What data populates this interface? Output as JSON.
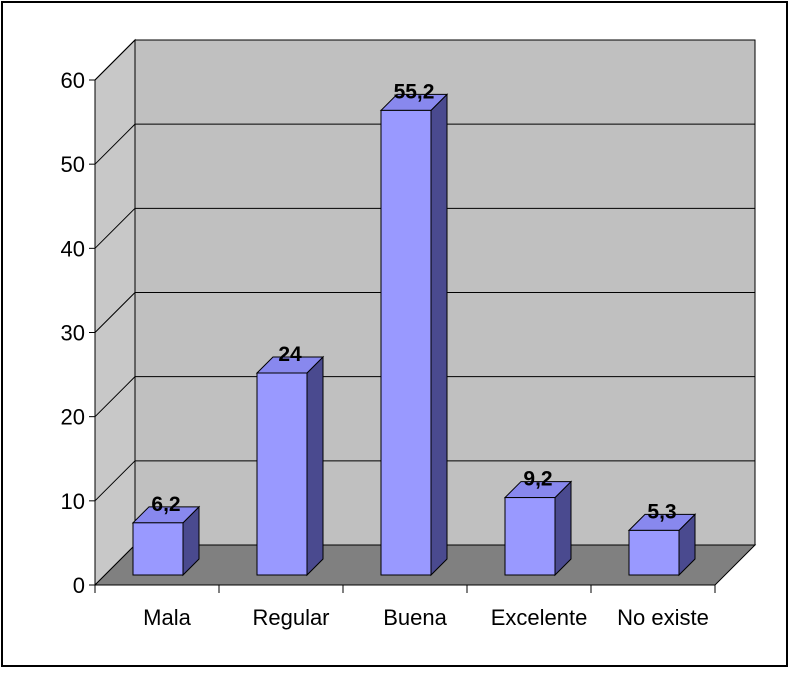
{
  "chart_data": {
    "type": "bar",
    "categories": [
      "Mala",
      "Regular",
      "Buena",
      "Excelente",
      "No existe"
    ],
    "values": [
      6.2,
      24,
      55.2,
      9.2,
      5.3
    ],
    "value_labels": [
      "6,2",
      "24",
      "55,2",
      "9,2",
      "5,3"
    ],
    "y_ticks": [
      "0",
      "10",
      "20",
      "30",
      "40",
      "50",
      "60"
    ],
    "ylim": [
      0,
      60
    ],
    "title": "",
    "xlabel": "",
    "ylabel": "",
    "grid": true,
    "legend": "none",
    "style": "3d-column"
  },
  "colors": {
    "bar_front": "#9999ff",
    "bar_side": "#4a4a8f",
    "bar_top": "#8888ee",
    "back_wall": "#c0c0c0",
    "side_wall": "#c8c8c8",
    "floor": "#808080",
    "gridline": "#000000"
  }
}
